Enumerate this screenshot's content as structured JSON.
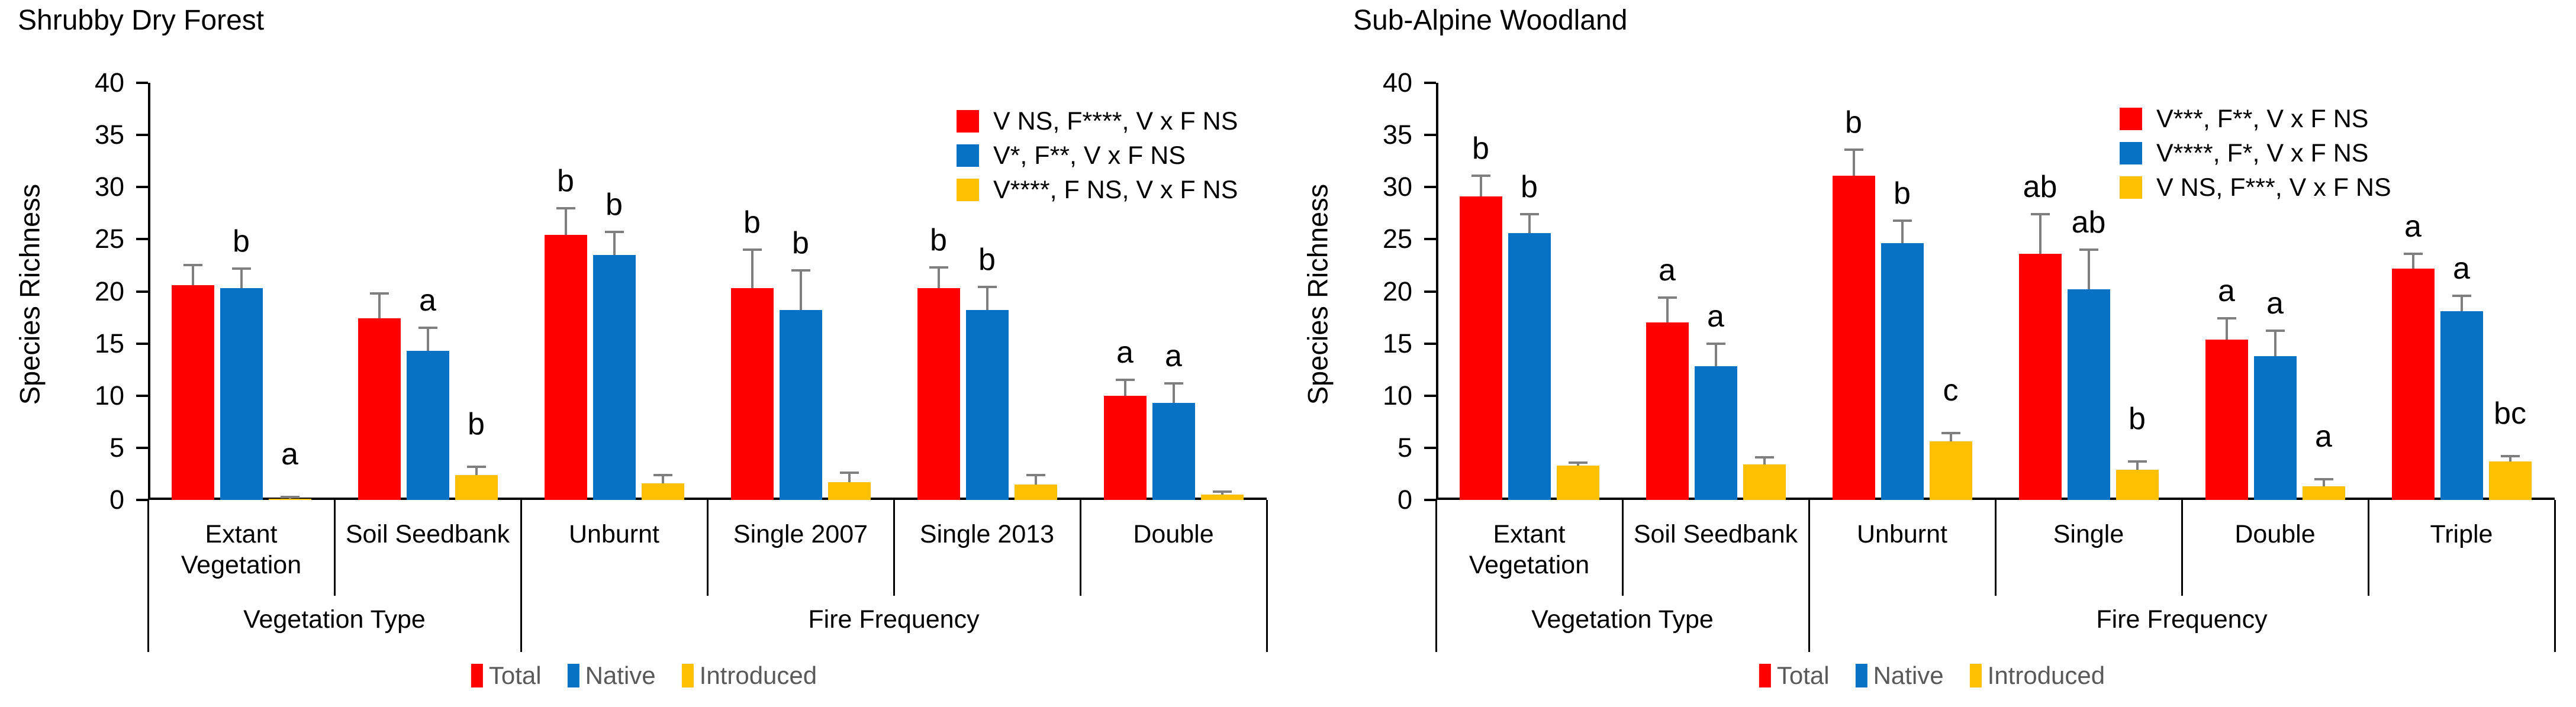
{
  "figure": {
    "description": "Two-panel bar chart of species richness by vegetation type and fire frequency"
  },
  "colors": {
    "total": "#FF0000",
    "native": "#0772C3",
    "introduced": "#FFC000",
    "error_bar": "#7F7F7F",
    "axis": "#000000",
    "bottom_legend_text": "#595959"
  },
  "chart_data": [
    {
      "type": "bar",
      "title": "Shrubby Dry Forest",
      "ylabel": "Species Richness",
      "xlabel": "",
      "ylim": [
        0,
        40
      ],
      "ytick_step": 5,
      "yticks": [
        0,
        5,
        10,
        15,
        20,
        25,
        30,
        35,
        40
      ],
      "grid": false,
      "legend_position": "top-right-inside",
      "categories": [
        "Extant\nVegetation",
        "Soil Seedbank",
        "Unburnt",
        "Single 2007",
        "Single 2013",
        "Double"
      ],
      "axis_groups": [
        {
          "label": "Vegetation Type",
          "span": 2
        },
        {
          "label": "Fire Frequency",
          "span": 4
        }
      ],
      "stats_legend": [
        {
          "series": "Total",
          "color": "#FF0000",
          "label": "V NS, F****, V x F NS"
        },
        {
          "series": "Native",
          "color": "#0772C3",
          "label": "V*, F**, V x F NS"
        },
        {
          "series": "Introduced",
          "color": "#FFC000",
          "label": "V****, F NS, V x F NS"
        }
      ],
      "series": [
        {
          "name": "Total",
          "color": "#FF0000",
          "values": [
            20.6,
            17.4,
            25.4,
            20.3,
            20.3,
            10.0
          ],
          "errors": [
            1.9,
            2.4,
            2.6,
            3.7,
            2.0,
            1.5
          ],
          "sig_letters": [
            "",
            "",
            "b",
            "b",
            "b",
            "a"
          ]
        },
        {
          "name": "Native",
          "color": "#0772C3",
          "values": [
            20.3,
            14.3,
            23.5,
            18.2,
            18.2,
            9.3
          ],
          "errors": [
            1.9,
            2.2,
            2.2,
            3.8,
            2.2,
            1.9
          ],
          "sig_letters": [
            "b",
            "a",
            "b",
            "b",
            "b",
            "a"
          ]
        },
        {
          "name": "Introduced",
          "color": "#FFC000",
          "values": [
            0.1,
            2.4,
            1.6,
            1.7,
            1.5,
            0.5
          ],
          "errors": [
            0.2,
            0.8,
            0.8,
            0.9,
            0.9,
            0.3
          ],
          "sig_letters": [
            "a",
            "b",
            "",
            "",
            "",
            ""
          ]
        }
      ],
      "bottom_legend": [
        "Total",
        "Native",
        "Introduced"
      ]
    },
    {
      "type": "bar",
      "title": "Sub-Alpine Woodland",
      "ylabel": "Species Richness",
      "xlabel": "",
      "ylim": [
        0,
        40
      ],
      "ytick_step": 5,
      "yticks": [
        0,
        5,
        10,
        15,
        20,
        25,
        30,
        35,
        40
      ],
      "grid": false,
      "legend_position": "top-right-inside",
      "categories": [
        "Extant\nVegetation",
        "Soil Seedbank",
        "Unburnt",
        "Single",
        "Double",
        "Triple"
      ],
      "axis_groups": [
        {
          "label": "Vegetation Type",
          "span": 2
        },
        {
          "label": "Fire Frequency",
          "span": 4
        }
      ],
      "stats_legend": [
        {
          "series": "Total",
          "color": "#FF0000",
          "label": "V***, F**, V x F NS"
        },
        {
          "series": "Native",
          "color": "#0772C3",
          "label": "V****, F*, V x F NS"
        },
        {
          "series": "Introduced",
          "color": "#FFC000",
          "label": "V NS, F***, V x F NS"
        }
      ],
      "series": [
        {
          "name": "Total",
          "color": "#FF0000",
          "values": [
            29.1,
            17.0,
            31.1,
            23.6,
            15.4,
            22.2
          ],
          "errors": [
            2.0,
            2.4,
            2.5,
            3.8,
            2.0,
            1.4
          ],
          "sig_letters": [
            "b",
            "a",
            "b",
            "ab",
            "a",
            "a"
          ]
        },
        {
          "name": "Native",
          "color": "#0772C3",
          "values": [
            25.6,
            12.8,
            24.6,
            20.2,
            13.8,
            18.1
          ],
          "errors": [
            1.8,
            2.2,
            2.2,
            3.8,
            2.4,
            1.5
          ],
          "sig_letters": [
            "b",
            "a",
            "b",
            "ab",
            "a",
            "a"
          ]
        },
        {
          "name": "Introduced",
          "color": "#FFC000",
          "values": [
            3.3,
            3.4,
            5.6,
            2.9,
            1.3,
            3.7
          ],
          "errors": [
            0.3,
            0.7,
            0.8,
            0.8,
            0.7,
            0.5
          ],
          "sig_letters": [
            "",
            "",
            "c",
            "b",
            "a",
            "bc"
          ]
        }
      ],
      "bottom_legend": [
        "Total",
        "Native",
        "Introduced"
      ]
    }
  ]
}
